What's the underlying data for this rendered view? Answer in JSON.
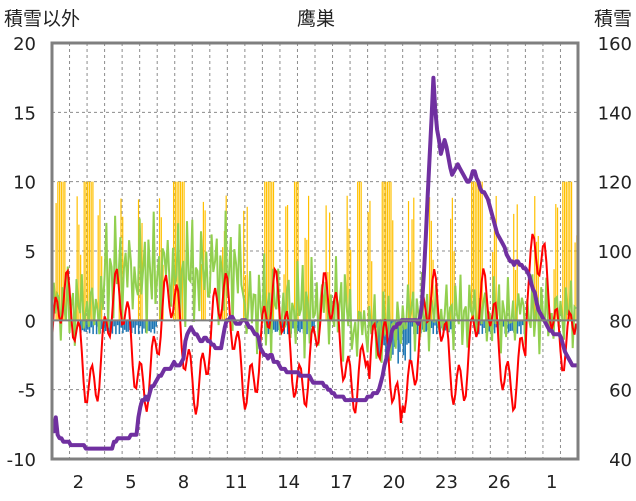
{
  "chart_data": {
    "type": "line",
    "title": "鹰巣",
    "ylabel": "積雪以外",
    "ylabel_right": "積雪",
    "ylim": [
      -10,
      20
    ],
    "ylim_right": [
      40,
      160
    ],
    "y_ticks": [
      "20",
      "15",
      "10",
      "5",
      "0",
      "-5",
      "-10"
    ],
    "y_ticks_right": [
      "160",
      "140",
      "120",
      "100",
      "80",
      "60",
      "40"
    ],
    "x_labels": [
      "2",
      "5",
      "8",
      "11",
      "14",
      "17",
      "20",
      "23",
      "26",
      "1"
    ],
    "colors": {
      "temperature": "#ff0000",
      "sunshine": "#ffc000",
      "wind": "#92d050",
      "precip": "#1f77b4",
      "snow": "#7030a0"
    },
    "series": [
      {
        "key": "snow",
        "axis": "right",
        "values": [
          48,
          48,
          52,
          47,
          46,
          46,
          45,
          45,
          45,
          45,
          44,
          44,
          44,
          44,
          44,
          44,
          44,
          44,
          43,
          43,
          43,
          43,
          43,
          43,
          43,
          43,
          43,
          43,
          43,
          43,
          43,
          43,
          43,
          45,
          45,
          46,
          46,
          46,
          46,
          46,
          46,
          46,
          47,
          47,
          47,
          47,
          52,
          55,
          57,
          57,
          58,
          57,
          59,
          61,
          61,
          62,
          63,
          64,
          64,
          65,
          66,
          66,
          66,
          66,
          67,
          68,
          67,
          67,
          67,
          68,
          69,
          74,
          76,
          77,
          78,
          77,
          76,
          76,
          75,
          74,
          74,
          75,
          75,
          74,
          74,
          73,
          73,
          72,
          72,
          72,
          72,
          75,
          78,
          80,
          80,
          81,
          81,
          80,
          79,
          79,
          79,
          80,
          80,
          80,
          79,
          78,
          78,
          77,
          76,
          76,
          75,
          72,
          71,
          70,
          70,
          69,
          70,
          70,
          68,
          68,
          68,
          67,
          66,
          66,
          66,
          65,
          65,
          65,
          65,
          65,
          65,
          65,
          64,
          64,
          64,
          64,
          64,
          64,
          63,
          62,
          62,
          62,
          62,
          62,
          62,
          61,
          61,
          60,
          60,
          59,
          59,
          58,
          58,
          58,
          58,
          58,
          57,
          57,
          57,
          57,
          57,
          57,
          57,
          57,
          57,
          57,
          57,
          57,
          58,
          58,
          58,
          59,
          59,
          59,
          60,
          62,
          64,
          67,
          69,
          72,
          74,
          77,
          78,
          78,
          79,
          79,
          80,
          80,
          80,
          80,
          80,
          80,
          80,
          80,
          80,
          79,
          81,
          85,
          94,
          104,
          116,
          127,
          138,
          150,
          141,
          135,
          132,
          128,
          130,
          132,
          130,
          127,
          124,
          122,
          123,
          124,
          125,
          124,
          123,
          122,
          121,
          120,
          120,
          121,
          123,
          123,
          121,
          120,
          118,
          117,
          117,
          116,
          115,
          113,
          111,
          109,
          107,
          105,
          104,
          103,
          102,
          101,
          99,
          98,
          97,
          97,
          96,
          97,
          97,
          96,
          96,
          95,
          95,
          94,
          93,
          91,
          89,
          88,
          85,
          83,
          82,
          81,
          80,
          79,
          78,
          77,
          77,
          76,
          76,
          76,
          76,
          75,
          73,
          71,
          70,
          69,
          68,
          67,
          67,
          67,
          67
        ]
      }
    ]
  }
}
